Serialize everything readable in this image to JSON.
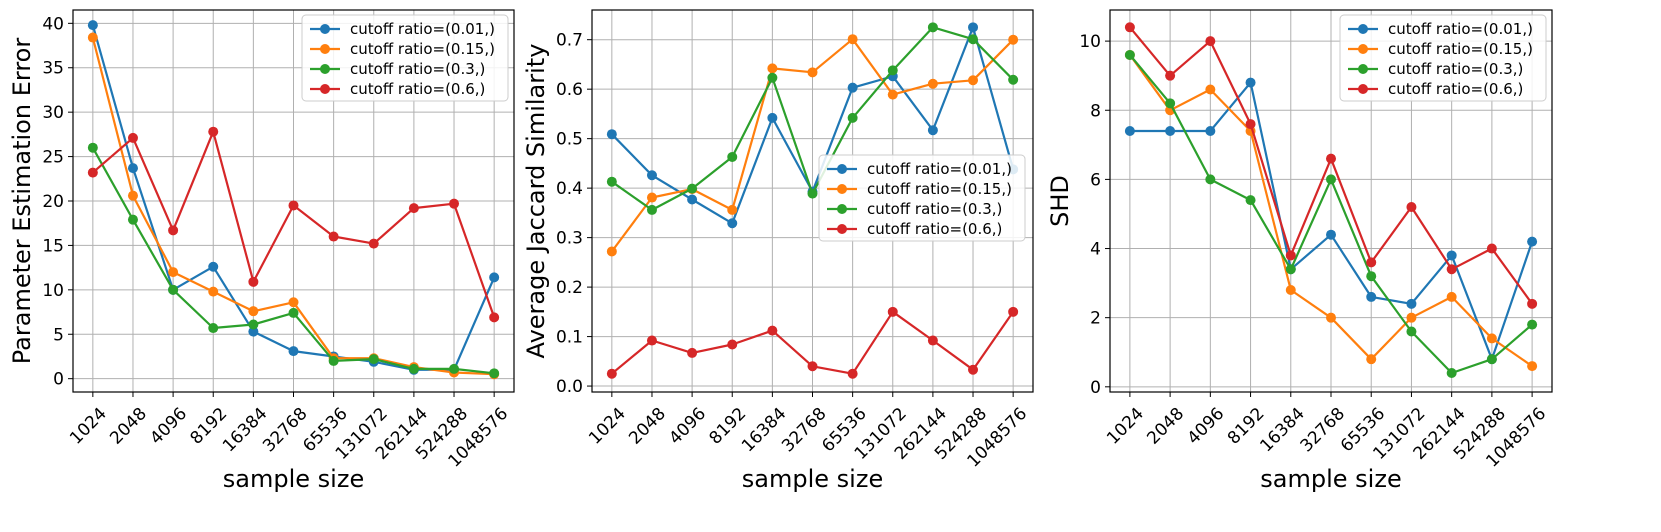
{
  "chart_data": [
    {
      "type": "line",
      "xlabel": "sample size",
      "ylabel": "Parameter Estimation Error",
      "categories": [
        "1024",
        "2048",
        "4096",
        "8192",
        "16384",
        "32768",
        "65536",
        "131072",
        "262144",
        "524288",
        "1048576"
      ],
      "ylim": [
        -1.5,
        41.5
      ],
      "yticks": [
        "0",
        "5",
        "10",
        "15",
        "20",
        "25",
        "30",
        "35",
        "40"
      ],
      "legend_position": "upper right",
      "series": [
        {
          "name": "cutoff ratio=(0.01,)",
          "color": "#1f77b4",
          "values": [
            39.8,
            23.7,
            10.0,
            12.6,
            5.3,
            3.1,
            2.5,
            1.9,
            1.0,
            1.0,
            11.4
          ]
        },
        {
          "name": "cutoff ratio=(0.15,)",
          "color": "#ff7f0e",
          "values": [
            38.4,
            20.6,
            12.0,
            9.8,
            7.6,
            8.6,
            2.3,
            2.3,
            1.3,
            0.7,
            0.5
          ]
        },
        {
          "name": "cutoff ratio=(0.3,)",
          "color": "#2ca02c",
          "values": [
            26.0,
            17.9,
            10.0,
            5.7,
            6.1,
            7.4,
            2.0,
            2.2,
            1.1,
            1.1,
            0.6
          ]
        },
        {
          "name": "cutoff ratio=(0.6,)",
          "color": "#d62728",
          "values": [
            23.2,
            27.1,
            16.7,
            27.8,
            10.9,
            19.5,
            16.0,
            15.2,
            19.2,
            19.7,
            6.9
          ]
        }
      ]
    },
    {
      "type": "line",
      "xlabel": "sample size",
      "ylabel": "Average Jaccard Similarity",
      "categories": [
        "1024",
        "2048",
        "4096",
        "8192",
        "16384",
        "32768",
        "65536",
        "131072",
        "262144",
        "524288",
        "1048576"
      ],
      "ylim": [
        -0.012,
        0.76
      ],
      "yticks": [
        "0.0",
        "0.1",
        "0.2",
        "0.3",
        "0.4",
        "0.5",
        "0.6",
        "0.7"
      ],
      "legend_position": "center right",
      "series": [
        {
          "name": "cutoff ratio=(0.01,)",
          "color": "#1f77b4",
          "values": [
            0.509,
            0.426,
            0.377,
            0.329,
            0.542,
            0.393,
            0.603,
            0.626,
            0.517,
            0.725,
            0.438
          ]
        },
        {
          "name": "cutoff ratio=(0.15,)",
          "color": "#ff7f0e",
          "values": [
            0.272,
            0.381,
            0.398,
            0.356,
            0.642,
            0.634,
            0.701,
            0.589,
            0.611,
            0.618,
            0.7
          ]
        },
        {
          "name": "cutoff ratio=(0.3,)",
          "color": "#2ca02c",
          "values": [
            0.413,
            0.356,
            0.399,
            0.463,
            0.623,
            0.389,
            0.542,
            0.638,
            0.725,
            0.701,
            0.619
          ]
        },
        {
          "name": "cutoff ratio=(0.6,)",
          "color": "#d62728",
          "values": [
            0.025,
            0.092,
            0.067,
            0.084,
            0.112,
            0.04,
            0.025,
            0.15,
            0.092,
            0.033,
            0.15
          ]
        }
      ]
    },
    {
      "type": "line",
      "xlabel": "sample size",
      "ylabel": "SHD",
      "categories": [
        "1024",
        "2048",
        "4096",
        "8192",
        "16384",
        "32768",
        "65536",
        "131072",
        "262144",
        "524288",
        "1048576"
      ],
      "ylim": [
        -0.15,
        10.9
      ],
      "yticks": [
        "0",
        "2",
        "4",
        "6",
        "8",
        "10"
      ],
      "legend_position": "upper right",
      "series": [
        {
          "name": "cutoff ratio=(0.01,)",
          "color": "#1f77b4",
          "values": [
            7.4,
            7.4,
            7.4,
            8.8,
            3.4,
            4.4,
            2.6,
            2.4,
            3.8,
            0.8,
            4.2
          ]
        },
        {
          "name": "cutoff ratio=(0.15,)",
          "color": "#ff7f0e",
          "values": [
            9.6,
            8.0,
            8.6,
            7.4,
            2.8,
            2.0,
            0.8,
            2.0,
            2.6,
            1.4,
            0.6
          ]
        },
        {
          "name": "cutoff ratio=(0.3,)",
          "color": "#2ca02c",
          "values": [
            9.6,
            8.2,
            6.0,
            5.4,
            3.4,
            6.0,
            3.2,
            1.6,
            0.4,
            0.8,
            1.8
          ]
        },
        {
          "name": "cutoff ratio=(0.6,)",
          "color": "#d62728",
          "values": [
            10.4,
            9.0,
            10.0,
            7.6,
            3.8,
            6.6,
            3.6,
            5.2,
            3.4,
            4.0,
            2.4
          ]
        }
      ]
    }
  ]
}
